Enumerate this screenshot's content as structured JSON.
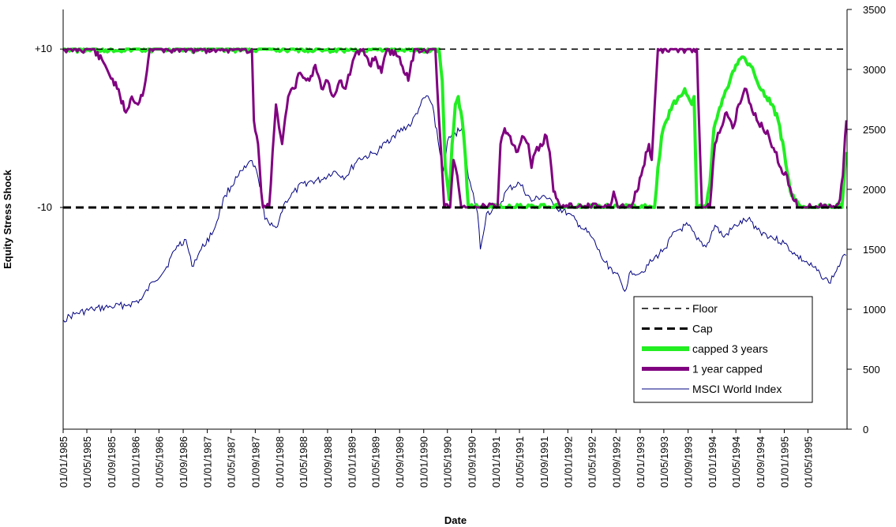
{
  "chart_data": {
    "type": "line",
    "xlabel": "Date",
    "ylabel": "Equity Stress Shock",
    "left_axis": {
      "range": [
        -38,
        15
      ],
      "tick_labels": [
        {
          "value": 10,
          "label": "+10"
        },
        {
          "value": -10,
          "label": "-10"
        }
      ]
    },
    "right_axis": {
      "range": [
        0,
        3500
      ],
      "ticks": [
        0,
        500,
        1000,
        1500,
        2000,
        2500,
        3000,
        3500
      ]
    },
    "x_range": [
      "1985-01-01",
      "1995-11-15"
    ],
    "x_tick_labels": [
      "01/01/1985",
      "01/05/1985",
      "01/09/1985",
      "01/01/1986",
      "01/05/1986",
      "01/09/1986",
      "01/01/1987",
      "01/05/1987",
      "01/09/1987",
      "01/01/1988",
      "01/05/1988",
      "01/09/1988",
      "01/01/1989",
      "01/05/1989",
      "01/09/1989",
      "01/01/1990",
      "01/05/1990",
      "01/09/1990",
      "01/01/1991",
      "01/05/1991",
      "01/09/1991",
      "01/01/1992",
      "01/05/1992",
      "01/09/1992",
      "01/01/1993",
      "01/05/1993",
      "01/09/1993",
      "01/01/1994",
      "01/05/1994",
      "01/09/1994",
      "01/01/1995",
      "01/05/1995"
    ],
    "legend_position": "bottom-right",
    "series": [
      {
        "name": "Floor",
        "axis": "left",
        "style": "dashed-thin",
        "color": "#000000",
        "value": 10
      },
      {
        "name": "Cap",
        "axis": "left",
        "style": "dashed-thick",
        "color": "#000000",
        "value": -10
      },
      {
        "name": "capped 3 years",
        "axis": "left",
        "style": "solid-thick",
        "color": "#22ee22",
        "points": [
          [
            "1985-01-01",
            10
          ],
          [
            "1990-03-20",
            10
          ],
          [
            "1990-04-05",
            6
          ],
          [
            "1990-04-20",
            -5
          ],
          [
            "1990-05-10",
            -9
          ],
          [
            "1990-05-25",
            -2
          ],
          [
            "1990-06-10",
            3
          ],
          [
            "1990-06-25",
            4
          ],
          [
            "1990-07-15",
            1
          ],
          [
            "1990-08-01",
            -4
          ],
          [
            "1990-08-15",
            -10
          ],
          [
            "1993-03-15",
            -10
          ],
          [
            "1993-04-01",
            -5
          ],
          [
            "1993-04-20",
            -1
          ],
          [
            "1993-05-15",
            1
          ],
          [
            "1993-06-15",
            3
          ],
          [
            "1993-07-15",
            4
          ],
          [
            "1993-08-15",
            5
          ],
          [
            "1993-09-01",
            4
          ],
          [
            "1993-09-20",
            3
          ],
          [
            "1993-10-01",
            4
          ],
          [
            "1993-10-15",
            -10
          ],
          [
            "1993-12-01",
            -10
          ],
          [
            "1993-12-20",
            -7
          ],
          [
            "1994-01-10",
            0
          ],
          [
            "1994-02-01",
            2
          ],
          [
            "1994-03-01",
            4
          ],
          [
            "1994-04-01",
            6
          ],
          [
            "1994-05-01",
            8
          ],
          [
            "1994-06-01",
            9
          ],
          [
            "1994-07-01",
            8
          ],
          [
            "1994-08-01",
            7
          ],
          [
            "1994-09-01",
            5
          ],
          [
            "1994-10-01",
            4
          ],
          [
            "1994-11-01",
            3
          ],
          [
            "1994-12-01",
            1
          ],
          [
            "1995-01-01",
            -3
          ],
          [
            "1995-02-01",
            -8
          ],
          [
            "1995-03-01",
            -9
          ],
          [
            "1995-04-01",
            -10
          ],
          [
            "1995-10-20",
            -10
          ],
          [
            "1995-11-10",
            -3
          ]
        ]
      },
      {
        "name": "1 year capped",
        "axis": "left",
        "style": "solid-thick",
        "color": "#800080",
        "points": [
          [
            "1985-01-01",
            10
          ],
          [
            "1985-06-01",
            10
          ],
          [
            "1985-08-01",
            8
          ],
          [
            "1985-10-01",
            5
          ],
          [
            "1985-11-15",
            2
          ],
          [
            "1985-12-15",
            4
          ],
          [
            "1986-01-15",
            3
          ],
          [
            "1986-02-15",
            5
          ],
          [
            "1986-03-15",
            10
          ],
          [
            "1987-08-15",
            10
          ],
          [
            "1987-08-25",
            1
          ],
          [
            "1987-09-15",
            -2
          ],
          [
            "1987-10-01",
            -8
          ],
          [
            "1987-10-10",
            -10
          ],
          [
            "1987-11-10",
            -10
          ],
          [
            "1987-12-15",
            3
          ],
          [
            "1988-01-15",
            -2
          ],
          [
            "1988-02-15",
            4
          ],
          [
            "1988-03-15",
            5
          ],
          [
            "1988-04-15",
            7
          ],
          [
            "1988-06-01",
            6
          ],
          [
            "1988-07-01",
            8
          ],
          [
            "1988-08-01",
            5
          ],
          [
            "1988-09-01",
            6
          ],
          [
            "1988-10-01",
            4
          ],
          [
            "1988-11-01",
            6
          ],
          [
            "1988-12-01",
            5
          ],
          [
            "1989-01-15",
            9
          ],
          [
            "1989-03-01",
            10
          ],
          [
            "1989-04-01",
            8
          ],
          [
            "1989-05-01",
            9
          ],
          [
            "1989-06-01",
            7
          ],
          [
            "1989-07-01",
            10
          ],
          [
            "1989-09-01",
            9
          ],
          [
            "1989-10-15",
            6
          ],
          [
            "1989-11-15",
            10
          ],
          [
            "1990-03-01",
            10
          ],
          [
            "1990-03-20",
            1
          ],
          [
            "1990-04-15",
            -10
          ],
          [
            "1990-05-15",
            -10
          ],
          [
            "1990-06-01",
            -4
          ],
          [
            "1990-06-20",
            -6
          ],
          [
            "1990-07-10",
            -10
          ],
          [
            "1990-09-01",
            -10
          ],
          [
            "1991-01-10",
            -10
          ],
          [
            "1991-01-25",
            -2
          ],
          [
            "1991-02-15",
            0
          ],
          [
            "1991-03-15",
            -1
          ],
          [
            "1991-04-15",
            -3
          ],
          [
            "1991-05-15",
            -1
          ],
          [
            "1991-06-15",
            -2
          ],
          [
            "1991-07-01",
            -5
          ],
          [
            "1991-07-20",
            -3
          ],
          [
            "1991-08-15",
            -2
          ],
          [
            "1991-09-15",
            -1
          ],
          [
            "1991-10-01",
            -3
          ],
          [
            "1991-10-20",
            -8
          ],
          [
            "1991-11-10",
            -9
          ],
          [
            "1991-12-01",
            -10
          ],
          [
            "1992-08-01",
            -10
          ],
          [
            "1992-08-20",
            -8
          ],
          [
            "1992-09-10",
            -10
          ],
          [
            "1992-11-15",
            -10
          ],
          [
            "1992-12-15",
            -8
          ],
          [
            "1993-01-15",
            -5
          ],
          [
            "1993-02-15",
            -2
          ],
          [
            "1993-03-01",
            -4
          ],
          [
            "1993-04-01",
            10
          ],
          [
            "1993-10-15",
            10
          ],
          [
            "1993-11-10",
            -10
          ],
          [
            "1993-12-20",
            -10
          ],
          [
            "1994-01-15",
            -2
          ],
          [
            "1994-02-15",
            0
          ],
          [
            "1994-03-15",
            2
          ],
          [
            "1994-04-15",
            0
          ],
          [
            "1994-05-15",
            3
          ],
          [
            "1994-06-15",
            5
          ],
          [
            "1994-07-15",
            3
          ],
          [
            "1994-08-15",
            1
          ],
          [
            "1994-09-15",
            0
          ],
          [
            "1994-10-15",
            -1
          ],
          [
            "1994-11-15",
            -3
          ],
          [
            "1994-12-15",
            -5
          ],
          [
            "1995-01-15",
            -6
          ],
          [
            "1995-02-15",
            -9
          ],
          [
            "1995-03-15",
            -10
          ],
          [
            "1995-09-15",
            -10
          ],
          [
            "1995-10-10",
            -9
          ],
          [
            "1995-10-25",
            -6
          ],
          [
            "1995-11-05",
            -1
          ],
          [
            "1995-11-12",
            1
          ]
        ]
      },
      {
        "name": "MSCI World Index",
        "axis": "right",
        "style": "solid-thin",
        "color": "#000080",
        "points": [
          [
            "1985-01-01",
            910
          ],
          [
            "1985-03-01",
            960
          ],
          [
            "1985-06-01",
            1000
          ],
          [
            "1985-09-01",
            1020
          ],
          [
            "1985-12-01",
            1040
          ],
          [
            "1986-02-01",
            1080
          ],
          [
            "1986-04-01",
            1230
          ],
          [
            "1986-06-01",
            1330
          ],
          [
            "1986-08-01",
            1530
          ],
          [
            "1986-09-15",
            1580
          ],
          [
            "1986-10-15",
            1360
          ],
          [
            "1986-12-01",
            1500
          ],
          [
            "1987-02-01",
            1650
          ],
          [
            "1987-04-01",
            1950
          ],
          [
            "1987-06-01",
            2100
          ],
          [
            "1987-07-15",
            2180
          ],
          [
            "1987-08-15",
            2240
          ],
          [
            "1987-09-15",
            2100
          ],
          [
            "1987-10-01",
            2000
          ],
          [
            "1987-10-20",
            1750
          ],
          [
            "1987-11-15",
            1700
          ],
          [
            "1987-12-15",
            1680
          ],
          [
            "1988-02-01",
            1900
          ],
          [
            "1988-05-01",
            2050
          ],
          [
            "1988-08-01",
            2080
          ],
          [
            "1988-10-01",
            2150
          ],
          [
            "1988-12-01",
            2100
          ],
          [
            "1989-02-01",
            2250
          ],
          [
            "1989-05-01",
            2300
          ],
          [
            "1989-08-01",
            2450
          ],
          [
            "1989-11-01",
            2550
          ],
          [
            "1989-12-15",
            2700
          ],
          [
            "1990-01-15",
            2780
          ],
          [
            "1990-02-15",
            2700
          ],
          [
            "1990-03-15",
            2400
          ],
          [
            "1990-04-10",
            2150
          ],
          [
            "1990-05-01",
            2400
          ],
          [
            "1990-06-01",
            2450
          ],
          [
            "1990-07-15",
            2520
          ],
          [
            "1990-08-15",
            2100
          ],
          [
            "1990-09-01",
            2000
          ],
          [
            "1990-10-01",
            1800
          ],
          [
            "1990-10-15",
            1500
          ],
          [
            "1990-11-15",
            1800
          ],
          [
            "1991-01-15",
            1850
          ],
          [
            "1991-03-01",
            2000
          ],
          [
            "1991-05-01",
            2050
          ],
          [
            "1991-07-01",
            1900
          ],
          [
            "1991-09-01",
            1950
          ],
          [
            "1991-11-01",
            1850
          ],
          [
            "1992-01-01",
            1800
          ],
          [
            "1992-03-01",
            1700
          ],
          [
            "1992-05-01",
            1600
          ],
          [
            "1992-07-01",
            1400
          ],
          [
            "1992-09-01",
            1300
          ],
          [
            "1992-10-15",
            1150
          ],
          [
            "1992-11-15",
            1320
          ],
          [
            "1993-01-01",
            1300
          ],
          [
            "1993-03-01",
            1400
          ],
          [
            "1993-05-01",
            1500
          ],
          [
            "1993-07-01",
            1650
          ],
          [
            "1993-09-01",
            1700
          ],
          [
            "1993-10-15",
            1580
          ],
          [
            "1993-12-01",
            1520
          ],
          [
            "1994-01-15",
            1700
          ],
          [
            "1994-03-01",
            1600
          ],
          [
            "1994-05-01",
            1700
          ],
          [
            "1994-07-01",
            1750
          ],
          [
            "1994-09-01",
            1650
          ],
          [
            "1994-11-01",
            1600
          ],
          [
            "1995-01-01",
            1550
          ],
          [
            "1995-03-01",
            1450
          ],
          [
            "1995-05-01",
            1380
          ],
          [
            "1995-07-01",
            1300
          ],
          [
            "1995-08-15",
            1220
          ],
          [
            "1995-09-15",
            1300
          ],
          [
            "1995-10-15",
            1400
          ],
          [
            "1995-11-10",
            1450
          ]
        ]
      }
    ]
  }
}
